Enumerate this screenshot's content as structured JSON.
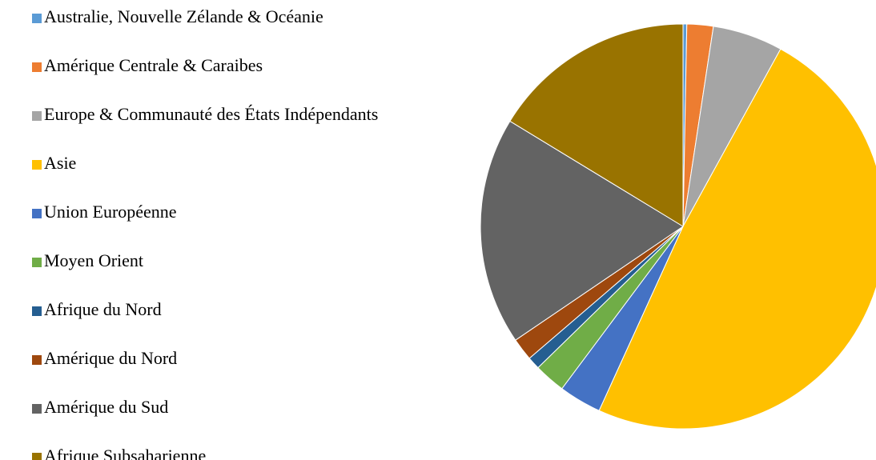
{
  "chart_data": {
    "type": "pie",
    "categories": [
      "Australie, Nouvelle Zélande & Océanie",
      "Amérique Centrale & Caraibes",
      "Europe & Communauté des États Indépendants",
      "Asie",
      "Union Européenne",
      "Moyen Orient",
      "Afrique du Nord",
      "Amérique du Nord",
      "Amérique du Sud",
      "Afrique Subsaharienne"
    ],
    "values": [
      0.3,
      2.1,
      5.6,
      48.8,
      3.4,
      2.5,
      1.0,
      1.8,
      18.2,
      16.3
    ],
    "colors": [
      "#5b9bd5",
      "#ed7d31",
      "#a5a5a5",
      "#ffc000",
      "#4472c4",
      "#70ad47",
      "#255e91",
      "#9e480e",
      "#636363",
      "#997300"
    ],
    "legend": "left"
  }
}
